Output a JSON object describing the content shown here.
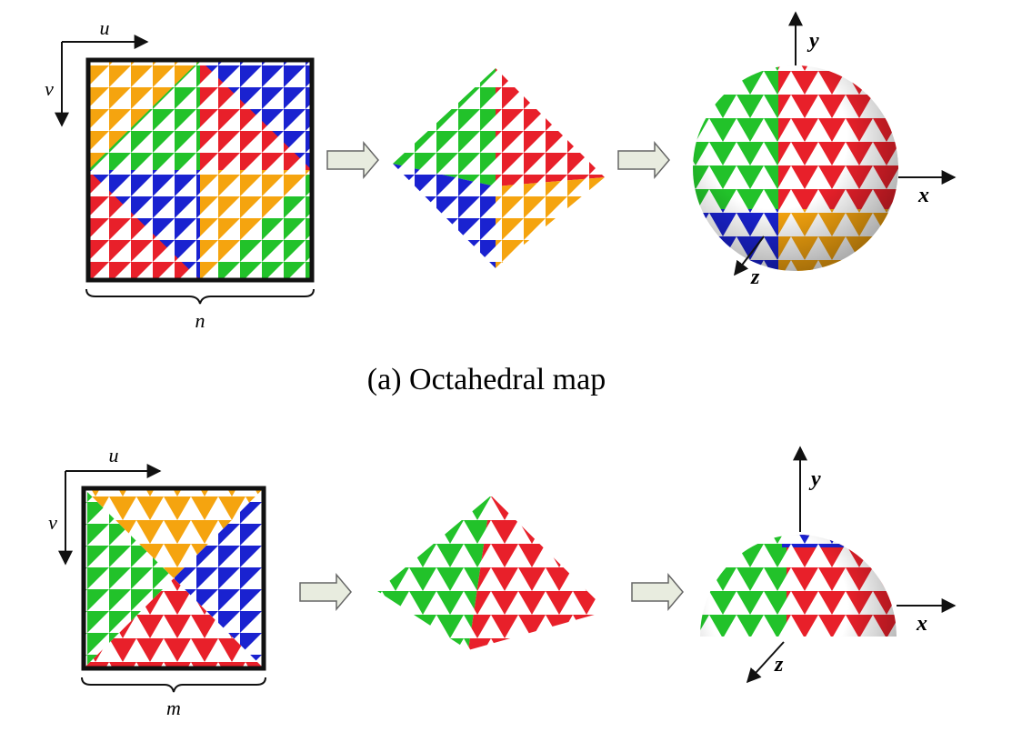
{
  "top": {
    "u_label": "u",
    "v_label": "v",
    "size_label": "n",
    "x_label": "x",
    "y_label": "y",
    "z_label": "z"
  },
  "caption": "(a) Octahedral map",
  "bottom": {
    "u_label": "u",
    "v_label": "v",
    "size_label": "m",
    "x_label": "x",
    "y_label": "y",
    "z_label": "z"
  }
}
